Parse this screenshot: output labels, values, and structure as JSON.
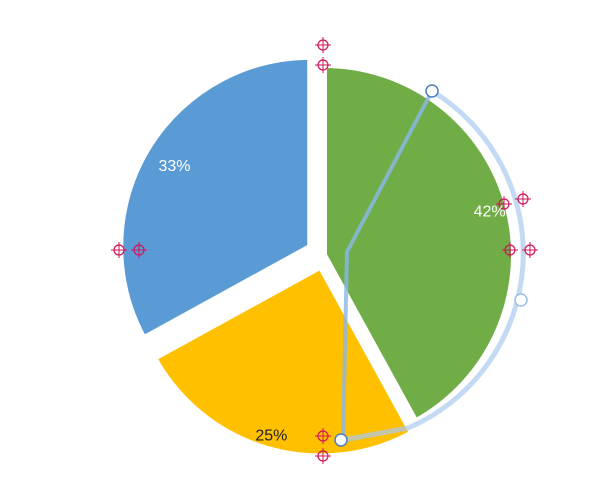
{
  "chart_data": {
    "type": "pie",
    "categories": [
      null,
      null,
      null
    ],
    "values": [
      42,
      25,
      33
    ],
    "value_labels": [
      "42%",
      "25%",
      "33%"
    ],
    "colors": [
      "#70ad47",
      "#ffc000",
      "#5b9bd5"
    ]
  }
}
